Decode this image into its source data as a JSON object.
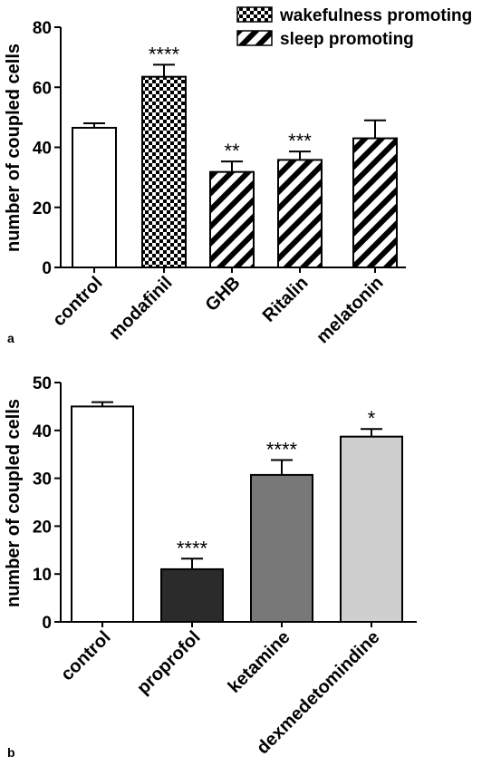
{
  "chart_data": [
    {
      "type": "bar",
      "panel": "a",
      "ylabel": "number of coupled cells",
      "ylim": [
        0,
        80
      ],
      "yticks": [
        0,
        20,
        40,
        60,
        80
      ],
      "categories": [
        "control",
        "modafinil",
        "GHB",
        "Ritalin",
        "melatonin"
      ],
      "values": [
        46.5,
        63.5,
        31.8,
        35.8,
        43
      ],
      "errors": [
        1.5,
        4,
        3.5,
        2.8,
        6
      ],
      "significance": [
        "",
        "****",
        "**",
        "***",
        ""
      ],
      "fills": [
        "white",
        "checker",
        "hatch",
        "hatch",
        "hatch"
      ],
      "legend": [
        {
          "label": "wakefulness promoting",
          "fill": "checker"
        },
        {
          "label": "sleep promoting",
          "fill": "hatch"
        }
      ],
      "legend_position": "top-right"
    },
    {
      "type": "bar",
      "panel": "b",
      "ylabel": "number of coupled cells",
      "ylim": [
        0,
        50
      ],
      "yticks": [
        0,
        10,
        20,
        30,
        40,
        50
      ],
      "categories": [
        "control",
        "proprofol",
        "ketamine",
        "dexmedetomindine"
      ],
      "values": [
        45,
        11,
        30.7,
        38.7
      ],
      "errors": [
        0.9,
        2.2,
        3.1,
        1.6
      ],
      "significance": [
        "",
        "****",
        "****",
        "*"
      ],
      "colors": [
        "#ffffff",
        "#2b2b2b",
        "#787878",
        "#cfcfcf"
      ]
    }
  ]
}
